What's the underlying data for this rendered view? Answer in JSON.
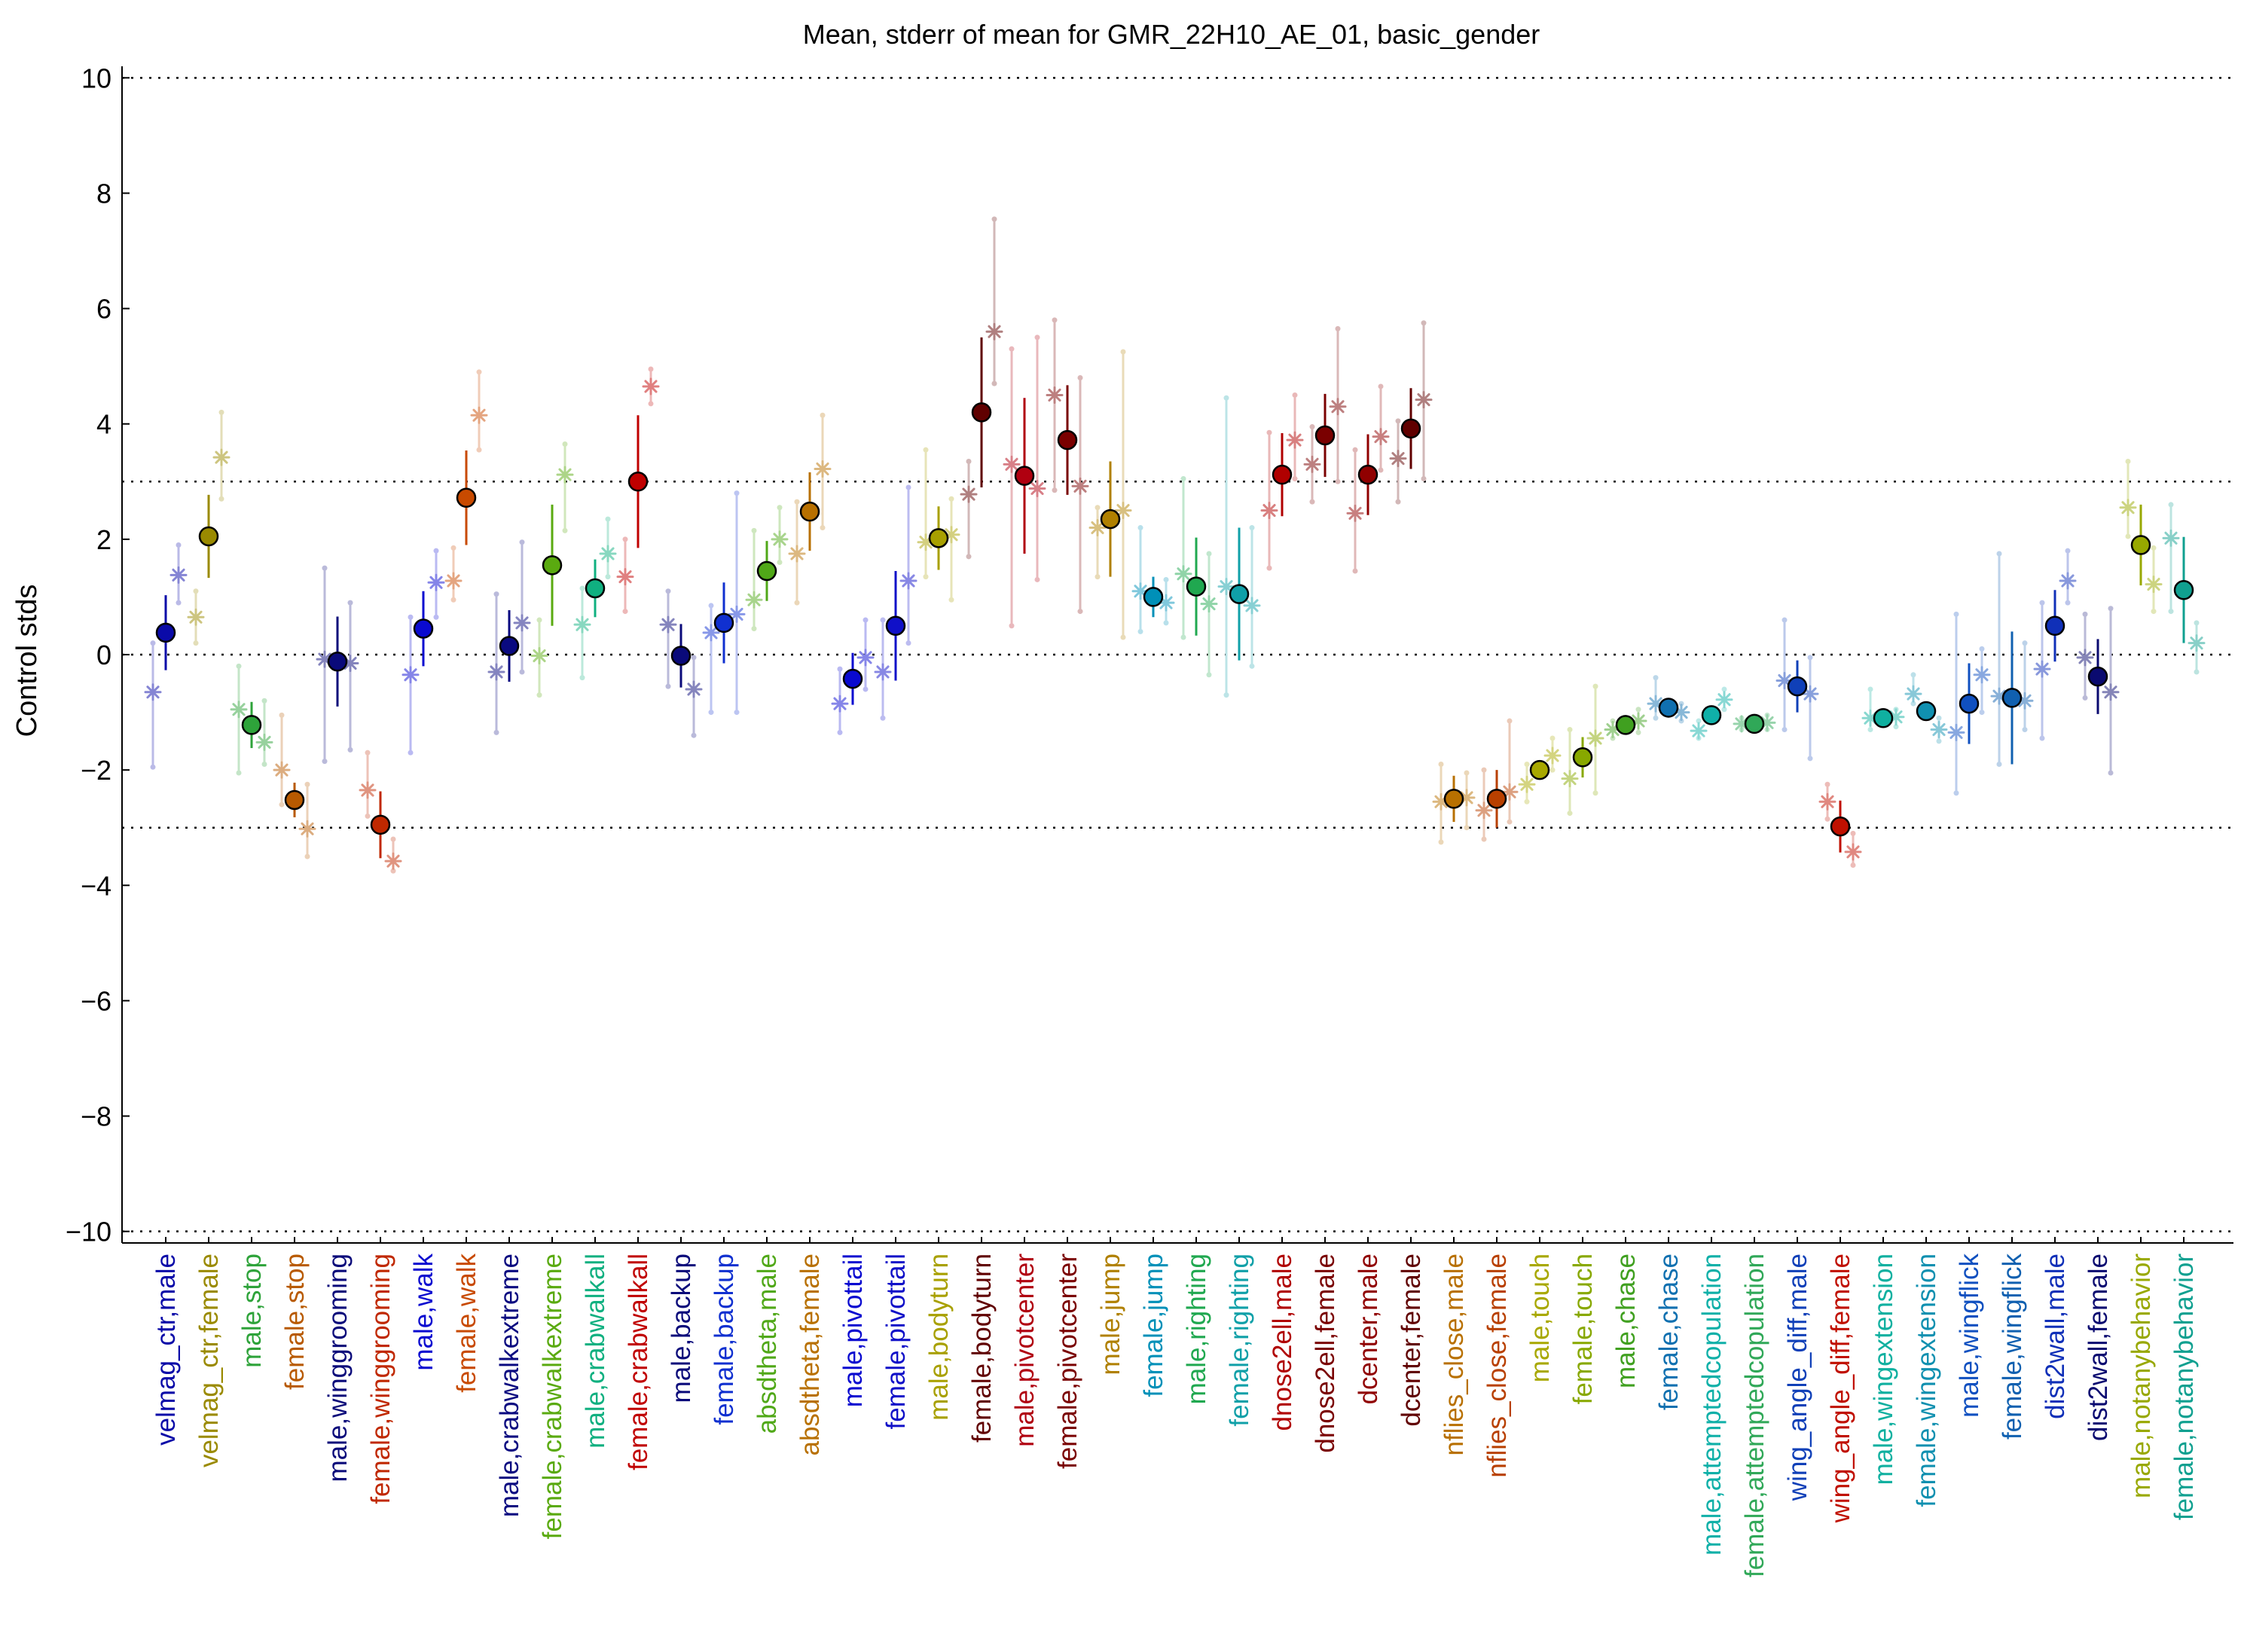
{
  "chart_data": {
    "type": "scatter",
    "title": "Mean, stderr of mean for GMR_22H10_AE_01, basic_gender",
    "ylabel": "Control stds",
    "xlabel": "",
    "ylim": [
      -10.2,
      10.2
    ],
    "yticks": [
      10,
      8,
      6,
      4,
      2,
      0,
      -2,
      -4,
      -6,
      -8,
      -10
    ],
    "ytick_labels": [
      "10",
      "8",
      "6",
      "4",
      "2",
      "0",
      "−2",
      "−4",
      "−6",
      "−8",
      "−10"
    ],
    "reference_lines": [
      10,
      3,
      0,
      -3,
      -10
    ],
    "grid": false,
    "legend": "none",
    "categories": [
      {
        "label": "velmag_ctr,male",
        "color": "#0a0aa8",
        "mean": 0.38,
        "sem": 0.65,
        "sets": [
          {
            "v": -0.65,
            "lo": -1.95,
            "hi": 0.2
          },
          {
            "v": 1.38,
            "lo": 0.9,
            "hi": 1.9
          }
        ]
      },
      {
        "label": "velmag_ctr,female",
        "color": "#9a8a00",
        "mean": 2.05,
        "sem": 0.72,
        "sets": [
          {
            "v": 0.65,
            "lo": 0.2,
            "hi": 1.1
          },
          {
            "v": 3.42,
            "lo": 2.7,
            "hi": 4.2
          }
        ]
      },
      {
        "label": "male,stop",
        "color": "#2ea33a",
        "mean": -1.22,
        "sem": 0.4,
        "sets": [
          {
            "v": -0.95,
            "lo": -2.05,
            "hi": -0.2
          },
          {
            "v": -1.52,
            "lo": -1.9,
            "hi": -0.8
          }
        ]
      },
      {
        "label": "female,stop",
        "color": "#b85a00",
        "mean": -2.52,
        "sem": 0.3,
        "sets": [
          {
            "v": -2.0,
            "lo": -2.6,
            "hi": -1.05
          },
          {
            "v": -3.02,
            "lo": -3.5,
            "hi": -2.25
          }
        ]
      },
      {
        "label": "male,winggrooming",
        "color": "#0a0a7a",
        "mean": -0.12,
        "sem": 0.78,
        "sets": [
          {
            "v": -0.08,
            "lo": -1.85,
            "hi": 1.5
          },
          {
            "v": -0.15,
            "lo": -1.65,
            "hi": 0.9
          }
        ]
      },
      {
        "label": "female,winggrooming",
        "color": "#c02800",
        "mean": -2.95,
        "sem": 0.58,
        "sets": [
          {
            "v": -2.35,
            "lo": -2.8,
            "hi": -1.7
          },
          {
            "v": -3.58,
            "lo": -3.75,
            "hi": -3.2
          }
        ]
      },
      {
        "label": "male,walk",
        "color": "#0a0ad0",
        "mean": 0.45,
        "sem": 0.65,
        "sets": [
          {
            "v": -0.35,
            "lo": -1.7,
            "hi": 0.65
          },
          {
            "v": 1.25,
            "lo": 0.65,
            "hi": 1.8
          }
        ]
      },
      {
        "label": "female,walk",
        "color": "#c84a00",
        "mean": 2.72,
        "sem": 0.82,
        "sets": [
          {
            "v": 1.28,
            "lo": 0.95,
            "hi": 1.85
          },
          {
            "v": 4.15,
            "lo": 3.55,
            "hi": 4.9
          }
        ]
      },
      {
        "label": "male,crabwalkextreme",
        "color": "#0a0a80",
        "mean": 0.15,
        "sem": 0.62,
        "sets": [
          {
            "v": -0.3,
            "lo": -1.35,
            "hi": 1.05
          },
          {
            "v": 0.55,
            "lo": -0.3,
            "hi": 1.95
          }
        ]
      },
      {
        "label": "female,crabwalkextreme",
        "color": "#5aaa10",
        "mean": 1.55,
        "sem": 1.05,
        "sets": [
          {
            "v": -0.02,
            "lo": -0.7,
            "hi": 0.6
          },
          {
            "v": 3.12,
            "lo": 2.15,
            "hi": 3.65
          }
        ]
      },
      {
        "label": "male,crabwalkall",
        "color": "#10b080",
        "mean": 1.15,
        "sem": 0.5,
        "sets": [
          {
            "v": 0.52,
            "lo": -0.4,
            "hi": 1.15
          },
          {
            "v": 1.75,
            "lo": 1.35,
            "hi": 2.35
          }
        ]
      },
      {
        "label": "female,crabwalkall",
        "color": "#c00000",
        "mean": 3.0,
        "sem": 1.15,
        "sets": [
          {
            "v": 1.35,
            "lo": 0.75,
            "hi": 2.0
          },
          {
            "v": 4.65,
            "lo": 4.35,
            "hi": 4.95
          }
        ]
      },
      {
        "label": "male,backup",
        "color": "#0a0a7a",
        "mean": -0.02,
        "sem": 0.55,
        "sets": [
          {
            "v": 0.52,
            "lo": -0.55,
            "hi": 1.1
          },
          {
            "v": -0.6,
            "lo": -1.4,
            "hi": -0.05
          }
        ]
      },
      {
        "label": "female,backup",
        "color": "#1030d0",
        "mean": 0.55,
        "sem": 0.7,
        "sets": [
          {
            "v": 0.38,
            "lo": -1.0,
            "hi": 0.85
          },
          {
            "v": 0.7,
            "lo": -1.0,
            "hi": 2.8
          }
        ]
      },
      {
        "label": "absdtheta,male",
        "color": "#50a818",
        "mean": 1.45,
        "sem": 0.52,
        "sets": [
          {
            "v": 0.95,
            "lo": 0.45,
            "hi": 2.15
          },
          {
            "v": 2.0,
            "lo": 1.6,
            "hi": 2.55
          }
        ]
      },
      {
        "label": "absdtheta,female",
        "color": "#b87000",
        "mean": 2.48,
        "sem": 0.68,
        "sets": [
          {
            "v": 1.75,
            "lo": 0.9,
            "hi": 2.65
          },
          {
            "v": 3.22,
            "lo": 2.2,
            "hi": 4.15
          }
        ]
      },
      {
        "label": "male,pivottail",
        "color": "#0a0ad0",
        "mean": -0.42,
        "sem": 0.45,
        "sets": [
          {
            "v": -0.85,
            "lo": -1.35,
            "hi": -0.25
          },
          {
            "v": -0.05,
            "lo": -0.6,
            "hi": 0.6
          }
        ]
      },
      {
        "label": "female,pivottail",
        "color": "#1010c8",
        "mean": 0.5,
        "sem": 0.95,
        "sets": [
          {
            "v": -0.3,
            "lo": -1.1,
            "hi": 0.6
          },
          {
            "v": 1.28,
            "lo": 0.2,
            "hi": 2.9
          }
        ]
      },
      {
        "label": "male,bodyturn",
        "color": "#a8a000",
        "mean": 2.02,
        "sem": 0.55,
        "sets": [
          {
            "v": 1.95,
            "lo": 1.35,
            "hi": 3.55
          },
          {
            "v": 2.08,
            "lo": 0.95,
            "hi": 2.7
          }
        ]
      },
      {
        "label": "female,bodyturn",
        "color": "#600000",
        "mean": 4.2,
        "sem": 1.3,
        "sets": [
          {
            "v": 2.78,
            "lo": 1.7,
            "hi": 3.35
          },
          {
            "v": 5.6,
            "lo": 4.7,
            "hi": 7.55
          }
        ]
      },
      {
        "label": "male,pivotcenter",
        "color": "#b00010",
        "mean": 3.1,
        "sem": 1.35,
        "sets": [
          {
            "v": 3.3,
            "lo": 0.5,
            "hi": 5.3
          },
          {
            "v": 2.88,
            "lo": 1.3,
            "hi": 5.5
          }
        ]
      },
      {
        "label": "female,pivotcenter",
        "color": "#7a0000",
        "mean": 3.72,
        "sem": 0.95,
        "sets": [
          {
            "v": 4.5,
            "lo": 2.85,
            "hi": 5.8
          },
          {
            "v": 2.92,
            "lo": 0.75,
            "hi": 4.8
          }
        ]
      },
      {
        "label": "male,jump",
        "color": "#b08000",
        "mean": 2.35,
        "sem": 1.0,
        "sets": [
          {
            "v": 2.2,
            "lo": 1.35,
            "hi": 2.55
          },
          {
            "v": 2.5,
            "lo": 0.3,
            "hi": 5.25
          }
        ]
      },
      {
        "label": "female,jump",
        "color": "#0090b8",
        "mean": 1.0,
        "sem": 0.35,
        "sets": [
          {
            "v": 1.1,
            "lo": 0.4,
            "hi": 2.2
          },
          {
            "v": 0.9,
            "lo": 0.55,
            "hi": 1.3
          }
        ]
      },
      {
        "label": "male,righting",
        "color": "#20a850",
        "mean": 1.18,
        "sem": 0.85,
        "sets": [
          {
            "v": 1.4,
            "lo": 0.3,
            "hi": 3.05
          },
          {
            "v": 0.88,
            "lo": -0.35,
            "hi": 1.75
          }
        ]
      },
      {
        "label": "female,righting",
        "color": "#10a0a8",
        "mean": 1.05,
        "sem": 1.15,
        "sets": [
          {
            "v": 1.18,
            "lo": -0.7,
            "hi": 4.45
          },
          {
            "v": 0.85,
            "lo": -0.2,
            "hi": 2.2
          }
        ]
      },
      {
        "label": "dnose2ell,male",
        "color": "#b00000",
        "mean": 3.12,
        "sem": 0.72,
        "sets": [
          {
            "v": 2.5,
            "lo": 1.5,
            "hi": 3.85
          },
          {
            "v": 3.72,
            "lo": 3.05,
            "hi": 4.5
          }
        ]
      },
      {
        "label": "dnose2ell,female",
        "color": "#7a0000",
        "mean": 3.8,
        "sem": 0.72,
        "sets": [
          {
            "v": 3.3,
            "lo": 2.65,
            "hi": 3.95
          },
          {
            "v": 4.3,
            "lo": 3.0,
            "hi": 5.65
          }
        ]
      },
      {
        "label": "dcenter,male",
        "color": "#900000",
        "mean": 3.12,
        "sem": 0.7,
        "sets": [
          {
            "v": 2.45,
            "lo": 1.45,
            "hi": 3.55
          },
          {
            "v": 3.78,
            "lo": 3.2,
            "hi": 4.65
          }
        ]
      },
      {
        "label": "dcenter,female",
        "color": "#600000",
        "mean": 3.92,
        "sem": 0.7,
        "sets": [
          {
            "v": 3.4,
            "lo": 2.65,
            "hi": 4.05
          },
          {
            "v": 4.42,
            "lo": 3.05,
            "hi": 5.75
          }
        ]
      },
      {
        "label": "nflies_close,male",
        "color": "#b87000",
        "mean": -2.5,
        "sem": 0.4,
        "sets": [
          {
            "v": -2.55,
            "lo": -3.25,
            "hi": -1.9
          },
          {
            "v": -2.48,
            "lo": -3.0,
            "hi": -2.05
          }
        ]
      },
      {
        "label": "nflies_close,female",
        "color": "#b84000",
        "mean": -2.5,
        "sem": 0.5,
        "sets": [
          {
            "v": -2.7,
            "lo": -3.2,
            "hi": -2.0
          },
          {
            "v": -2.38,
            "lo": -2.9,
            "hi": -1.15
          }
        ]
      },
      {
        "label": "male,touch",
        "color": "#a8a800",
        "mean": -2.0,
        "sem": 0.1,
        "sets": [
          {
            "v": -2.25,
            "lo": -2.55,
            "hi": -1.9
          },
          {
            "v": -1.75,
            "lo": -2.0,
            "hi": -1.45
          }
        ]
      },
      {
        "label": "female,touch",
        "color": "#88a800",
        "mean": -1.78,
        "sem": 0.35,
        "sets": [
          {
            "v": -2.15,
            "lo": -2.75,
            "hi": -1.3
          },
          {
            "v": -1.45,
            "lo": -2.4,
            "hi": -0.55
          }
        ]
      },
      {
        "label": "male,chase",
        "color": "#40a020",
        "mean": -1.22,
        "sem": 0.08,
        "sets": [
          {
            "v": -1.3,
            "lo": -1.45,
            "hi": -1.15
          },
          {
            "v": -1.15,
            "lo": -1.35,
            "hi": -0.95
          }
        ]
      },
      {
        "label": "female,chase",
        "color": "#1070b0",
        "mean": -0.92,
        "sem": 0.08,
        "sets": [
          {
            "v": -0.85,
            "lo": -1.1,
            "hi": -0.4
          },
          {
            "v": -1.0,
            "lo": -1.15,
            "hi": -0.85
          }
        ]
      },
      {
        "label": "male,attemptedcopulation",
        "color": "#10b0a8",
        "mean": -1.05,
        "sem": 0.08,
        "sets": [
          {
            "v": -1.32,
            "lo": -1.45,
            "hi": -1.15
          },
          {
            "v": -0.78,
            "lo": -0.95,
            "hi": -0.6
          }
        ]
      },
      {
        "label": "female,attemptedcopulation",
        "color": "#30a858",
        "mean": -1.2,
        "sem": 0.05,
        "sets": [
          {
            "v": -1.2,
            "lo": -1.3,
            "hi": -1.1
          },
          {
            "v": -1.18,
            "lo": -1.3,
            "hi": -1.05
          }
        ]
      },
      {
        "label": "wing_angle_diff,male",
        "color": "#1040b8",
        "mean": -0.55,
        "sem": 0.45,
        "sets": [
          {
            "v": -0.45,
            "lo": -1.3,
            "hi": 0.6
          },
          {
            "v": -0.68,
            "lo": -1.8,
            "hi": -0.05
          }
        ]
      },
      {
        "label": "wing_angle_diff,female",
        "color": "#c01000",
        "mean": -2.98,
        "sem": 0.45,
        "sets": [
          {
            "v": -2.55,
            "lo": -2.85,
            "hi": -2.25
          },
          {
            "v": -3.42,
            "lo": -3.65,
            "hi": -3.1
          }
        ]
      },
      {
        "label": "male,wingextension",
        "color": "#10b0a0",
        "mean": -1.1,
        "sem": 0.06,
        "sets": [
          {
            "v": -1.1,
            "lo": -1.3,
            "hi": -0.6
          },
          {
            "v": -1.08,
            "lo": -1.25,
            "hi": -0.95
          }
        ]
      },
      {
        "label": "female,wingextension",
        "color": "#1090b0",
        "mean": -0.98,
        "sem": 0.06,
        "sets": [
          {
            "v": -0.68,
            "lo": -0.85,
            "hi": -0.35
          },
          {
            "v": -1.3,
            "lo": -1.5,
            "hi": -1.1
          }
        ]
      },
      {
        "label": "male,wingflick",
        "color": "#1050c0",
        "mean": -0.85,
        "sem": 0.7,
        "sets": [
          {
            "v": -1.35,
            "lo": -2.4,
            "hi": 0.7
          },
          {
            "v": -0.35,
            "lo": -1.0,
            "hi": 0.1
          }
        ]
      },
      {
        "label": "female,wingflick",
        "color": "#1060b0",
        "mean": -0.75,
        "sem": 1.15,
        "sets": [
          {
            "v": -0.72,
            "lo": -1.9,
            "hi": 1.75
          },
          {
            "v": -0.8,
            "lo": -1.3,
            "hi": 0.2
          }
        ]
      },
      {
        "label": "dist2wall,male",
        "color": "#1030b8",
        "mean": 0.5,
        "sem": 0.62,
        "sets": [
          {
            "v": -0.25,
            "lo": -1.45,
            "hi": 0.9
          },
          {
            "v": 1.28,
            "lo": 0.9,
            "hi": 1.8
          }
        ]
      },
      {
        "label": "dist2wall,female",
        "color": "#0a0a70",
        "mean": -0.38,
        "sem": 0.65,
        "sets": [
          {
            "v": -0.05,
            "lo": -0.75,
            "hi": 0.7
          },
          {
            "v": -0.65,
            "lo": -2.05,
            "hi": 0.8
          }
        ]
      },
      {
        "label": "male,notanybehavior",
        "color": "#98a800",
        "mean": 1.9,
        "sem": 0.7,
        "sets": [
          {
            "v": 2.55,
            "lo": 2.05,
            "hi": 3.35
          },
          {
            "v": 1.22,
            "lo": 0.75,
            "hi": 1.85
          }
        ]
      },
      {
        "label": "female,notanybehavior",
        "color": "#10a090",
        "mean": 1.12,
        "sem": 0.92,
        "sets": [
          {
            "v": 2.02,
            "lo": 0.75,
            "hi": 2.6
          },
          {
            "v": 0.2,
            "lo": -0.3,
            "hi": 0.55
          }
        ]
      }
    ]
  }
}
